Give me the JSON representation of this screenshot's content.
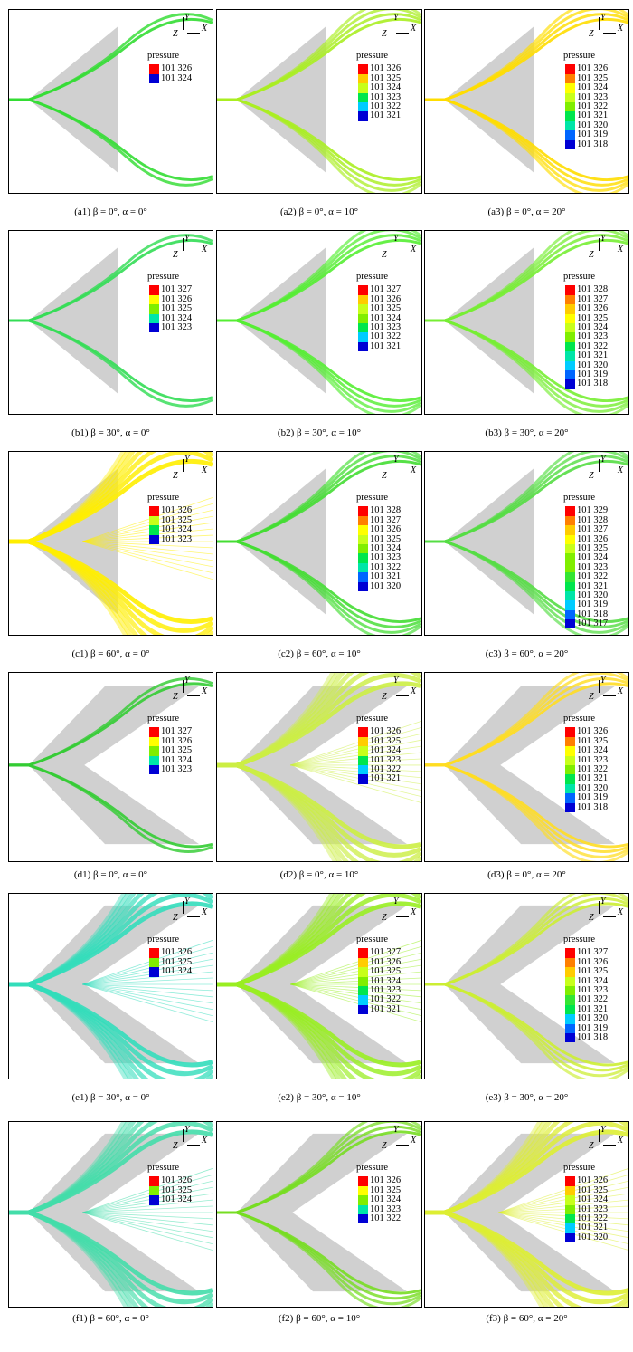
{
  "legend_title": "pressure",
  "axis_labels": {
    "y": "Y",
    "z": "Z",
    "x": "X"
  },
  "palette": [
    "#0000d4",
    "#0066ff",
    "#00ccff",
    "#00e6a8",
    "#00e64d",
    "#33e633",
    "#80ee00",
    "#c8ff1a",
    "#ffff00",
    "#ffcc00",
    "#ff8000",
    "#ff0000"
  ],
  "panels": [
    {
      "id": "a1",
      "caption": "(a1) β = 0°,  α = 0°",
      "legend": [
        "101 326",
        "101 324"
      ],
      "wing": "delta",
      "flow": "#33dd33",
      "spread": "low"
    },
    {
      "id": "a2",
      "caption": "(a2) β = 0°,  α = 10°",
      "legend": [
        "101 326",
        "101 325",
        "101 324",
        "101 323",
        "101 322",
        "101 321"
      ],
      "wing": "delta",
      "flow": "#aaee22",
      "spread": "mid"
    },
    {
      "id": "a3",
      "caption": "(a3) β = 0°,  α = 20°",
      "legend": [
        "101 326",
        "101 325",
        "101 324",
        "101 323",
        "101 322",
        "101 321",
        "101 320",
        "101 319",
        "101 318"
      ],
      "wing": "delta",
      "flow": "#ffdd00",
      "spread": "mid"
    },
    {
      "id": "b1",
      "caption": "(b1) β = 30°,  α = 0°",
      "legend": [
        "101 327",
        "101 326",
        "101 325",
        "101 324",
        "101 323"
      ],
      "wing": "delta",
      "flow": "#33dd55",
      "spread": "low"
    },
    {
      "id": "b2",
      "caption": "(b2) β = 30°,  α = 10°",
      "legend": [
        "101 327",
        "101 326",
        "101 325",
        "101 324",
        "101 323",
        "101 322",
        "101 321"
      ],
      "wing": "delta",
      "flow": "#55ee33",
      "spread": "mid"
    },
    {
      "id": "b3",
      "caption": "(b3) β = 30°,  α = 20°",
      "legend": [
        "101 328",
        "101 327",
        "101 326",
        "101 325",
        "101 324",
        "101 323",
        "101 322",
        "101 321",
        "101 320",
        "101 319",
        "101 318"
      ],
      "wing": "delta",
      "flow": "#77ee33",
      "spread": "mid"
    },
    {
      "id": "c1",
      "caption": "(c1) β = 60°,  α = 0°",
      "legend": [
        "101 326",
        "101 325",
        "101 324",
        "101 323"
      ],
      "wing": "delta",
      "flow": "#ffee00",
      "spread": "wide"
    },
    {
      "id": "c2",
      "caption": "(c2) β = 60°,  α = 10°",
      "legend": [
        "101 328",
        "101 327",
        "101 326",
        "101 325",
        "101 324",
        "101 323",
        "101 322",
        "101 321",
        "101 320"
      ],
      "wing": "delta",
      "flow": "#44dd33",
      "spread": "mid"
    },
    {
      "id": "c3",
      "caption": "(c3) β = 60°,  α = 20°",
      "legend": [
        "101 329",
        "101 328",
        "101 327",
        "101 326",
        "101 325",
        "101 324",
        "101 323",
        "101 322",
        "101 321",
        "101 320",
        "101 319",
        "101 318",
        "101 317"
      ],
      "wing": "delta",
      "flow": "#55dd44",
      "spread": "mid"
    },
    {
      "id": "d1",
      "caption": "(d1) β = 0°,  α = 0°",
      "legend": [
        "101 327",
        "101 326",
        "101 325",
        "101 324",
        "101 323"
      ],
      "wing": "cranked",
      "flow": "#33cc33",
      "spread": "low"
    },
    {
      "id": "d2",
      "caption": "(d2) β = 0°,  α = 10°",
      "legend": [
        "101 326",
        "101 325",
        "101 324",
        "101 323",
        "101 322",
        "101 321"
      ],
      "wing": "cranked",
      "flow": "#ccee44",
      "spread": "wide"
    },
    {
      "id": "d3",
      "caption": "(d3) β = 0°,  α = 20°",
      "legend": [
        "101 326",
        "101 325",
        "101 324",
        "101 323",
        "101 322",
        "101 321",
        "101 320",
        "101 319",
        "101 318"
      ],
      "wing": "cranked",
      "flow": "#ffdd22",
      "spread": "mid"
    },
    {
      "id": "e1",
      "caption": "(e1) β = 30°,  α = 0°",
      "legend": [
        "101 326",
        "101 325",
        "101 324"
      ],
      "wing": "cranked",
      "flow": "#33ddbb",
      "spread": "wide"
    },
    {
      "id": "e2",
      "caption": "(e2) β = 30°,  α = 10°",
      "legend": [
        "101 327",
        "101 326",
        "101 325",
        "101 324",
        "101 323",
        "101 322",
        "101 321"
      ],
      "wing": "cranked",
      "flow": "#99ee22",
      "spread": "wide"
    },
    {
      "id": "e3",
      "caption": "(e3) β = 30°,  α = 20°",
      "legend": [
        "101 327",
        "101 326",
        "101 325",
        "101 324",
        "101 323",
        "101 322",
        "101 321",
        "101 320",
        "101 319",
        "101 318"
      ],
      "wing": "cranked",
      "flow": "#ccee33",
      "spread": "mid"
    },
    {
      "id": "f1",
      "caption": "(f1) β = 60°,  α = 0°",
      "legend": [
        "101 326",
        "101 325",
        "101 324"
      ],
      "wing": "cranked",
      "flow": "#44ddaa",
      "spread": "wide"
    },
    {
      "id": "f2",
      "caption": "(f2) β = 60°,  α = 10°",
      "legend": [
        "101 326",
        "101 325",
        "101 324",
        "101 323",
        "101 322"
      ],
      "wing": "cranked",
      "flow": "#77dd22",
      "spread": "mid"
    },
    {
      "id": "f3",
      "caption": "(f3) β = 60°,  α = 20°",
      "legend": [
        "101 326",
        "101 325",
        "101 324",
        "101 323",
        "101 322",
        "101 321",
        "101 320"
      ],
      "wing": "cranked",
      "flow": "#ddee33",
      "spread": "wide"
    }
  ]
}
